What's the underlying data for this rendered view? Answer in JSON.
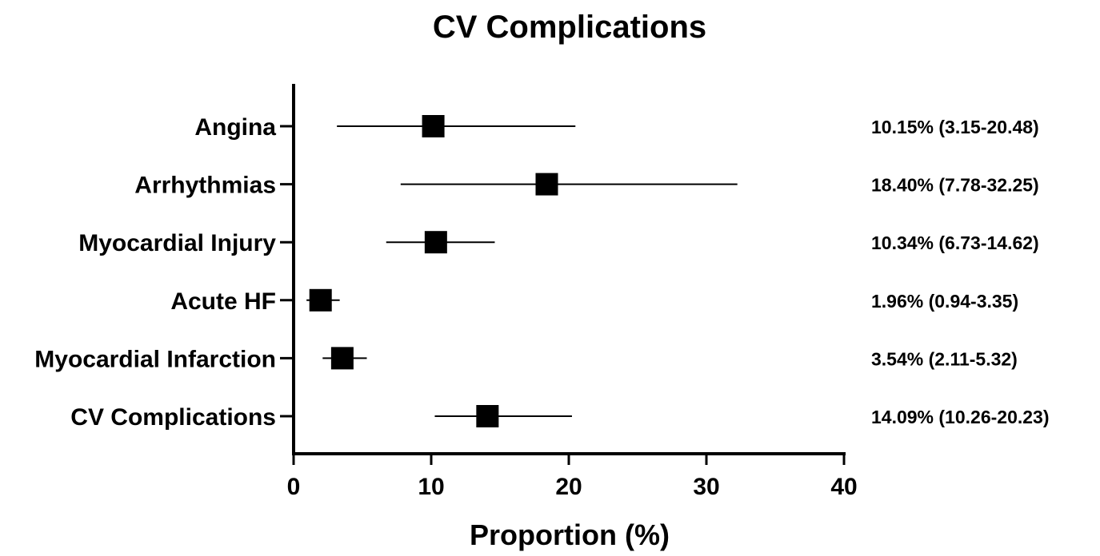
{
  "chart_data": {
    "type": "forest",
    "title": "CV Complications",
    "xlabel": "Proportion (%)",
    "ylabel": "",
    "xlim": [
      0,
      40
    ],
    "xticks": [
      0,
      10,
      20,
      30,
      40
    ],
    "xtick_labels": [
      "0",
      "10",
      "20",
      "30",
      "40"
    ],
    "grid": false,
    "legend": "none",
    "marker_color": "#000000",
    "categories": [
      "Angina",
      "Arrhythmias",
      "Myocardial Injury",
      "Acute HF",
      "Myocardial Infarction",
      "CV Complications"
    ],
    "series": [
      {
        "values": [
          10.15,
          18.4,
          10.34,
          1.96,
          3.54,
          14.09
        ],
        "ci_low": [
          3.15,
          7.78,
          6.73,
          0.94,
          2.11,
          10.26
        ],
        "ci_high": [
          20.48,
          32.25,
          14.62,
          3.35,
          5.32,
          20.23
        ]
      }
    ],
    "data_labels": [
      "10.15% (3.15-20.48)",
      "18.40% (7.78-32.25)",
      "10.34% (6.73-14.62)",
      "1.96% (0.94-3.35)",
      "3.54% (2.11-5.32)",
      "14.09% (10.26-20.23)"
    ]
  }
}
